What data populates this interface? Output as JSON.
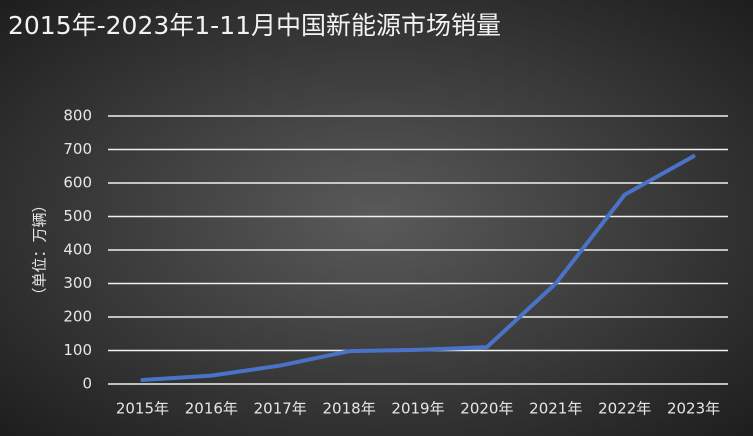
{
  "chart_data": {
    "type": "line",
    "title": "2015年-2023年1-11月中国新能源市场销量",
    "y_label": "（单位：万辆）",
    "categories": [
      "2015年",
      "2016年",
      "2017年",
      "2018年",
      "2019年",
      "2020年",
      "2021年",
      "2022年",
      "2023年"
    ],
    "values": [
      12,
      25,
      55,
      98,
      102,
      110,
      300,
      565,
      680
    ],
    "color": "#4a72c8",
    "ylim": [
      0,
      800
    ],
    "yticks": [
      0,
      100,
      200,
      300,
      400,
      500,
      600,
      700,
      800
    ],
    "grid": true
  }
}
